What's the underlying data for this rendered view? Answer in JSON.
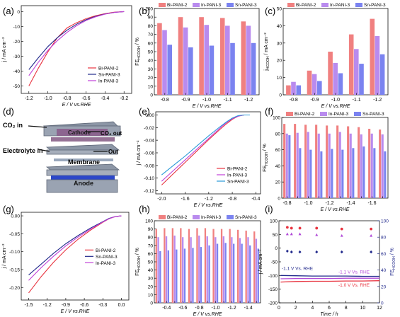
{
  "chart_data": [
    {
      "id": "a",
      "type": "line",
      "letter": "(a)",
      "xlabel": "E / V vs.RHE",
      "ylabel": "j / mA cm⁻²",
      "xlim": [
        -1.28,
        -0.12
      ],
      "ylim": [
        -55,
        4
      ],
      "xticks": [
        "-1.2",
        "-1.0",
        "-0.8",
        "-0.6",
        "-0.4",
        "-0.2"
      ],
      "xtick_values": [
        -1.2,
        -1.0,
        -0.8,
        -0.6,
        -0.4,
        -0.2
      ],
      "yticks": [
        "-50",
        "-40",
        "-30",
        "-20",
        "-10",
        "0"
      ],
      "ytick_values": [
        -50,
        -40,
        -30,
        -20,
        -10,
        0
      ],
      "legend": "bottom-right",
      "series": [
        {
          "name": "Bi-PANI-2",
          "color": "#e8333f",
          "x": [
            -1.2,
            -1.1,
            -1.0,
            -0.9,
            -0.8,
            -0.7,
            -0.6,
            -0.5,
            -0.4,
            -0.3,
            -0.2
          ],
          "y": [
            -50,
            -38,
            -27,
            -17.5,
            -11,
            -7.5,
            -4.8,
            -2.8,
            -1.4,
            -0.4,
            0
          ]
        },
        {
          "name": "Sn-PANI-3",
          "color": "#222a8c",
          "x": [
            -1.2,
            -1.1,
            -1.0,
            -0.9,
            -0.8,
            -0.7,
            -0.6,
            -0.5,
            -0.4,
            -0.3,
            -0.2
          ],
          "y": [
            -39,
            -31,
            -23.5,
            -17.5,
            -12.5,
            -8.5,
            -5.5,
            -3.2,
            -1.6,
            -0.5,
            0
          ]
        },
        {
          "name": "In-PANI-3",
          "color": "#c040d8",
          "x": [
            -1.2,
            -1.1,
            -1.0,
            -0.9,
            -0.8,
            -0.7,
            -0.6,
            -0.5,
            -0.4,
            -0.3,
            -0.2
          ],
          "y": [
            -43,
            -34,
            -26,
            -19.5,
            -14,
            -9.5,
            -6,
            -3.5,
            -1.7,
            -0.5,
            0
          ]
        }
      ]
    },
    {
      "id": "b",
      "type": "bar",
      "letter": "(b)",
      "xlabel": "E / V vs.RHE",
      "ylabel": "FE HCOOH / %",
      "ylim": [
        0,
        100
      ],
      "yticks": [
        "0",
        "10",
        "20",
        "30",
        "40",
        "50",
        "60",
        "70",
        "80",
        "90",
        "100"
      ],
      "ytick_values": [
        0,
        10,
        20,
        30,
        40,
        50,
        60,
        70,
        80,
        90,
        100
      ],
      "categories": [
        "-0.8",
        "-0.9",
        "-1.0",
        "-1.1",
        "-1.2"
      ],
      "series": [
        {
          "name": "Bi-PANI-2",
          "color": "#f08080",
          "values": [
            83,
            90,
            90,
            89,
            85
          ]
        },
        {
          "name": "In-PANI-3",
          "color": "#b98bee",
          "values": [
            75,
            78,
            81,
            80,
            80
          ]
        },
        {
          "name": "Sn-PANI-3",
          "color": "#7b83f0",
          "values": [
            58,
            55,
            57,
            60,
            60
          ]
        }
      ]
    },
    {
      "id": "c",
      "type": "bar",
      "letter": "(c)",
      "xlabel": "E / V vs.RHE",
      "ylabel": "j HCOOH / mA cm⁻²",
      "ylim": [
        0,
        50
      ],
      "yticks": [
        "0",
        "10",
        "20",
        "30",
        "40",
        "50"
      ],
      "ytick_values": [
        0,
        10,
        20,
        30,
        40,
        50
      ],
      "categories": [
        "-0.8",
        "-0.9",
        "-1.0",
        "-1.1",
        "-1.2"
      ],
      "series": [
        {
          "name": "Bi-PANI-2",
          "color": "#f08080",
          "values": [
            5.5,
            14,
            25,
            35,
            44
          ]
        },
        {
          "name": "In-PANI-3",
          "color": "#b98bee",
          "values": [
            7.5,
            12,
            18.5,
            26.5,
            34
          ]
        },
        {
          "name": "Sn-PANI-3",
          "color": "#7b83f0",
          "values": [
            5.5,
            8,
            12.5,
            18,
            23.5
          ]
        }
      ]
    },
    {
      "id": "e",
      "type": "line",
      "letter": "(e)",
      "xlabel": "E / V vs.RHE",
      "ylabel": "j / mA cm⁻²",
      "xlim": [
        -2.1,
        -0.32
      ],
      "ylim": [
        -0.125,
        0.005
      ],
      "xticks": [
        "-2.0",
        "-1.6",
        "-1.2",
        "-0.8",
        "-0.4"
      ],
      "xtick_values": [
        -2.0,
        -1.6,
        -1.2,
        -0.8,
        -0.4
      ],
      "yticks": [
        "-0.12",
        "-0.10",
        "-0.08",
        "-0.06",
        "-0.04",
        "-0.02",
        "0.00"
      ],
      "ytick_values": [
        -0.12,
        -0.1,
        -0.08,
        -0.06,
        -0.04,
        -0.02,
        0.0
      ],
      "legend": "bottom-right",
      "series": [
        {
          "name": "Bi-PANI-2",
          "color": "#e8333f",
          "x": [
            -2.0,
            -1.8,
            -1.6,
            -1.4,
            -1.2,
            -1.0,
            -0.9,
            -0.8,
            -0.7,
            -0.6,
            -0.5
          ],
          "y": [
            -0.111,
            -0.093,
            -0.075,
            -0.057,
            -0.039,
            -0.022,
            -0.014,
            -0.007,
            -0.002,
            0,
            0
          ]
        },
        {
          "name": "In-PANI-3",
          "color": "#c040d8",
          "x": [
            -2.0,
            -1.8,
            -1.6,
            -1.4,
            -1.2,
            -1.0,
            -0.9,
            -0.8,
            -0.7,
            -0.6,
            -0.5
          ],
          "y": [
            -0.105,
            -0.088,
            -0.071,
            -0.054,
            -0.037,
            -0.02,
            -0.012,
            -0.006,
            -0.002,
            0,
            0
          ]
        },
        {
          "name": "Sn-PANI-3",
          "color": "#2a9ad8",
          "x": [
            -2.0,
            -1.8,
            -1.6,
            -1.4,
            -1.2,
            -1.0,
            -0.9,
            -0.8,
            -0.7,
            -0.6,
            -0.5
          ],
          "y": [
            -0.095,
            -0.08,
            -0.065,
            -0.049,
            -0.033,
            -0.018,
            -0.011,
            -0.005,
            -0.001,
            0,
            0
          ]
        }
      ]
    },
    {
      "id": "f",
      "type": "bar",
      "letter": "(f)",
      "xlabel": "E / V vs.RHE",
      "ylabel": "FE HCOOH / %",
      "ylim": [
        0,
        100
      ],
      "yticks": [
        "0",
        "20",
        "40",
        "60",
        "80",
        "100"
      ],
      "ytick_values": [
        0,
        20,
        40,
        60,
        80,
        100
      ],
      "categories": [
        "-0.8",
        "",
        "-1.0",
        "",
        "-1.2",
        "",
        "-1.4",
        "",
        "-1.6",
        ""
      ],
      "tick_positions": [
        0,
        2,
        4,
        6,
        8
      ],
      "series": [
        {
          "name": "Bi-PANI-2",
          "color": "#f08080",
          "values": [
            92,
            92,
            91,
            91,
            90,
            90,
            89,
            88,
            86,
            85
          ]
        },
        {
          "name": "In-PANI-3",
          "color": "#b98bee",
          "values": [
            80,
            81,
            82,
            80,
            80,
            82,
            80,
            79,
            80,
            79
          ]
        },
        {
          "name": "Sn-PANI-3",
          "color": "#7b83f0",
          "values": [
            78,
            62,
            60,
            58,
            61,
            60,
            62,
            64,
            62,
            58
          ]
        }
      ]
    },
    {
      "id": "g",
      "type": "line",
      "letter": "(g)",
      "xlabel": "E / V vs.RHE",
      "ylabel": "j / mA cm⁻²",
      "xlim": [
        -1.62,
        0.12
      ],
      "ylim": [
        -0.235,
        0.01
      ],
      "xticks": [
        "-1.5",
        "-1.2",
        "-0.9",
        "-0.6",
        "-0.3",
        "0.0"
      ],
      "xtick_values": [
        -1.5,
        -1.2,
        -0.9,
        -0.6,
        -0.3,
        0.0
      ],
      "yticks": [
        "-0.20",
        "-0.15",
        "-0.10",
        "-0.05",
        "0.00"
      ],
      "ytick_values": [
        -0.2,
        -0.15,
        -0.1,
        -0.05,
        0.0
      ],
      "legend": "middle-right",
      "series": [
        {
          "name": "Bi-PANI-2",
          "color": "#e8333f",
          "x": [
            -1.5,
            -1.3,
            -1.1,
            -0.9,
            -0.7,
            -0.5,
            -0.3,
            -0.2,
            -0.1,
            0.0
          ],
          "y": [
            -0.215,
            -0.17,
            -0.13,
            -0.095,
            -0.065,
            -0.04,
            -0.018,
            -0.008,
            -0.002,
            0.0
          ]
        },
        {
          "name": "Sn-PANI-3",
          "color": "#222a8c",
          "x": [
            -1.5,
            -1.3,
            -1.1,
            -0.9,
            -0.7,
            -0.5,
            -0.3,
            -0.2,
            -0.1,
            0.0
          ],
          "y": [
            -0.165,
            -0.135,
            -0.105,
            -0.078,
            -0.055,
            -0.034,
            -0.016,
            -0.007,
            -0.002,
            0.0
          ]
        },
        {
          "name": "In-PANI-3",
          "color": "#c040d8",
          "x": [
            -1.5,
            -1.3,
            -1.1,
            -0.9,
            -0.7,
            -0.5,
            -0.3,
            -0.2,
            -0.1,
            0.0
          ],
          "y": [
            -0.18,
            -0.145,
            -0.113,
            -0.084,
            -0.059,
            -0.037,
            -0.017,
            -0.008,
            -0.002,
            0.0
          ]
        }
      ]
    },
    {
      "id": "h",
      "type": "bar",
      "letter": "(h)",
      "xlabel": "E / V vs.RHE",
      "ylabel": "FE HCOOH / %",
      "ylim": [
        0,
        100
      ],
      "yticks": [
        "0",
        "10",
        "20",
        "30",
        "40",
        "50",
        "60",
        "70",
        "80",
        "90",
        "100"
      ],
      "ytick_values": [
        0,
        10,
        20,
        30,
        40,
        50,
        60,
        70,
        80,
        90,
        100
      ],
      "categories": [
        "",
        "-0.4",
        "",
        "-0.6",
        "",
        "-0.8",
        "",
        "-1.0",
        "",
        "-1.2",
        "",
        "-1.4",
        ""
      ],
      "tick_positions": [
        1,
        3,
        5,
        7,
        9,
        11
      ],
      "series": [
        {
          "name": "Bi-PANI-2",
          "color": "#f08080",
          "values": [
            90,
            91,
            91,
            91,
            90,
            91,
            91,
            90,
            90,
            90,
            89,
            88,
            87
          ]
        },
        {
          "name": "In-PANI-3",
          "color": "#b98bee",
          "values": [
            80,
            81,
            82,
            80,
            80,
            82,
            81,
            80,
            81,
            80,
            79,
            80,
            78
          ]
        },
        {
          "name": "Sn-PANI-3",
          "color": "#7b83f0",
          "values": [
            63,
            64,
            65,
            66,
            67,
            68,
            70,
            72,
            73,
            72,
            72,
            70,
            66
          ]
        }
      ]
    },
    {
      "id": "i",
      "type": "scatter",
      "letter": "(i)",
      "xlabel": "Time / h",
      "ylabel": "j / mA cm⁻²",
      "y2label": "FE HCOOH / %",
      "xlim": [
        0,
        12
      ],
      "ylim": [
        -200,
        100
      ],
      "y2lim": [
        0,
        100
      ],
      "xticks": [
        "0",
        "2",
        "4",
        "6",
        "8",
        "10",
        "12"
      ],
      "xtick_values": [
        0,
        2,
        4,
        6,
        8,
        10,
        12
      ],
      "yticks": [
        "-200",
        "-150",
        "-100",
        "-50",
        "0",
        "50",
        "100"
      ],
      "ytick_values": [
        -200,
        -150,
        -100,
        -50,
        0,
        50,
        100
      ],
      "y2ticks": [
        "0",
        "20",
        "40",
        "60",
        "80",
        "100"
      ],
      "y2tick_values": [
        0,
        20,
        40,
        60,
        80,
        100
      ],
      "current_series": [
        {
          "label": "-1.1 V Vs. RHE",
          "color": "#222a8c",
          "x": [
            0.2,
            2,
            4,
            6,
            8,
            10,
            12
          ],
          "y": [
            -100,
            -101,
            -102,
            -102,
            -102,
            -103,
            -103
          ]
        },
        {
          "label": "-1.1 V Vs. RHE",
          "color": "#b14ad8",
          "x": [
            0.2,
            2,
            4,
            6,
            8,
            10,
            12
          ],
          "y": [
            -112,
            -111,
            -111,
            -111,
            -110,
            -110,
            -110
          ]
        },
        {
          "label": "-1.0 V Vs. RHE",
          "color": "#e8333f",
          "x": [
            0.2,
            2,
            4,
            6,
            8,
            10,
            12
          ],
          "y": [
            -124,
            -122,
            -121,
            -121,
            -120,
            -120,
            -119
          ]
        }
      ],
      "fe_series": [
        {
          "color": "#e8333f",
          "marker": "circle",
          "x": [
            1.0,
            1.5,
            2.5,
            4.5,
            7.5,
            11.0
          ],
          "y": [
            92,
            91,
            91,
            91,
            90,
            90
          ]
        },
        {
          "color": "#b14ad8",
          "marker": "triangle",
          "x": [
            1.0,
            1.5,
            2.5,
            4.5,
            7.5,
            11.0
          ],
          "y": [
            84,
            84,
            84,
            83,
            82,
            82
          ]
        },
        {
          "color": "#222a8c",
          "marker": "diamond",
          "x": [
            1.0,
            1.5,
            2.5,
            4.5,
            7.5,
            11.0
          ],
          "y": [
            63,
            62,
            62,
            62,
            62,
            62
          ]
        }
      ]
    }
  ],
  "diagram_d": {
    "letter": "(d)",
    "co2_in": "CO₂ in",
    "co2_out": "CO₂ out",
    "cathode": "Cathode",
    "electrolyte_in": "Electrolyte in",
    "out": "Out",
    "membrane": "Membrane",
    "anode": "Anode",
    "colors": {
      "frame": "#8c96a6",
      "cathode": "#8a5a8a",
      "membrane": "#9aa8bc",
      "anode": "#2c47c8"
    }
  }
}
